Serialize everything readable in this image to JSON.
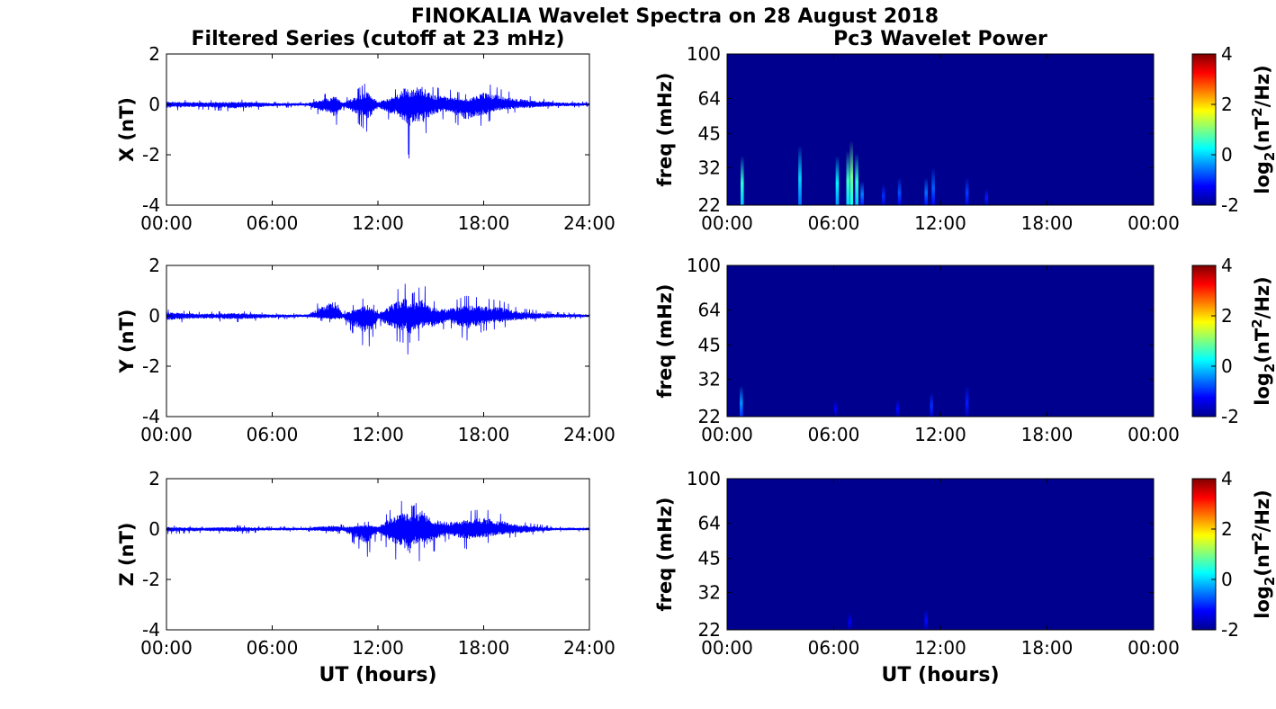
{
  "figure_title": "FINOKALIA Wavelet Spectra on 28 August 2018",
  "left_column_title": "Filtered Series (cutoff at 23 mHz)",
  "right_column_title": "Pc3 Wavelet Power",
  "time_xlabel": "UT (hours)",
  "freq_ylabel": "freq (mHz)",
  "colorbar_label": "log2(nT2/Hz)",
  "colors": {
    "trace": "#0000ff",
    "background": "#00008f",
    "axes": "#000000",
    "colormap": [
      "#00008f",
      "#0000ff",
      "#00ffff",
      "#ffff00",
      "#ff0000",
      "#800000"
    ]
  },
  "chart_data": [
    {
      "type": "line",
      "component": "X",
      "ylabel": "X (nT)",
      "xlim": [
        0,
        24
      ],
      "ylim": [
        -4,
        2
      ],
      "xticks": [
        "00:00",
        "06:00",
        "12:00",
        "18:00",
        "24:00"
      ],
      "yticks": [
        "2",
        "0",
        "-2",
        "-4"
      ],
      "grid": false,
      "series": [
        {
          "x_hours": [
            0,
            2,
            4,
            6,
            8,
            9.6,
            10,
            11.4,
            12,
            13,
            13.6,
            13.8,
            14,
            14.6,
            15,
            16,
            17,
            18,
            19,
            20,
            22,
            24
          ],
          "y_upper": [
            0.2,
            0.15,
            0.2,
            0.1,
            0.1,
            0.6,
            0.15,
            0.9,
            0.2,
            0.6,
            1.4,
            0.8,
            1.2,
            1.3,
            0.7,
            0.6,
            0.4,
            0.9,
            0.6,
            0.4,
            0.15,
            0.1
          ],
          "y_lower": [
            -0.25,
            -0.2,
            -0.3,
            -0.15,
            -0.1,
            -0.9,
            -0.2,
            -1.1,
            -0.3,
            -0.8,
            -1.4,
            -2.3,
            -1.2,
            -1.3,
            -0.8,
            -0.5,
            -1.1,
            -0.8,
            -0.4,
            -0.3,
            -0.15,
            -0.1
          ]
        }
      ]
    },
    {
      "type": "line",
      "component": "Y",
      "ylabel": "Y (nT)",
      "xlim": [
        0,
        24
      ],
      "ylim": [
        -4,
        2
      ],
      "xticks": [
        "00:00",
        "06:00",
        "12:00",
        "18:00",
        "24:00"
      ],
      "yticks": [
        "2",
        "0",
        "-2",
        "-4"
      ],
      "grid": false,
      "series": [
        {
          "x_hours": [
            0,
            2,
            4,
            6,
            8,
            9.6,
            10,
            11.4,
            12,
            13,
            13.6,
            13.8,
            14,
            14.6,
            15,
            16,
            17,
            18,
            19,
            20,
            22,
            24
          ],
          "y_upper": [
            0.25,
            0.15,
            0.2,
            0.1,
            0.1,
            1.2,
            0.15,
            0.8,
            0.2,
            1.0,
            1.3,
            0.9,
            0.9,
            1.3,
            0.6,
            0.5,
            0.8,
            0.7,
            0.6,
            0.3,
            0.15,
            0.1
          ],
          "y_lower": [
            -0.3,
            -0.2,
            -0.25,
            -0.15,
            -0.1,
            -0.3,
            -0.2,
            -1.4,
            -0.3,
            -1.0,
            -1.1,
            -2.0,
            -1.1,
            -0.9,
            -0.9,
            -0.4,
            -1.0,
            -0.6,
            -0.5,
            -0.3,
            -0.15,
            -0.1
          ]
        }
      ]
    },
    {
      "type": "line",
      "component": "Z",
      "ylabel": "Z (nT)",
      "xlim": [
        0,
        24
      ],
      "ylim": [
        -4,
        2
      ],
      "xticks": [
        "00:00",
        "06:00",
        "12:00",
        "18:00",
        "24:00"
      ],
      "yticks": [
        "2",
        "0",
        "-2",
        "-4"
      ],
      "grid": false,
      "series": [
        {
          "x_hours": [
            0,
            2,
            4,
            6,
            8,
            9.6,
            10,
            11.4,
            12,
            13,
            13.6,
            13.8,
            14,
            14.6,
            15,
            16,
            17,
            18,
            19,
            20,
            22,
            24
          ],
          "y_upper": [
            0.15,
            0.1,
            0.15,
            0.1,
            0.1,
            0.3,
            0.15,
            0.3,
            0.2,
            1.0,
            1.2,
            1.0,
            0.9,
            1.4,
            0.7,
            0.5,
            0.7,
            0.8,
            0.6,
            0.3,
            0.1,
            0.1
          ],
          "y_lower": [
            -0.2,
            -0.15,
            -0.2,
            -0.1,
            -0.1,
            -0.2,
            -0.15,
            -1.1,
            -0.3,
            -1.2,
            -1.5,
            -2.2,
            -1.1,
            -1.4,
            -1.0,
            -0.4,
            -0.8,
            -0.6,
            -0.4,
            -0.3,
            -0.1,
            -0.1
          ]
        }
      ]
    },
    {
      "type": "heatmap",
      "component": "X",
      "xlim": [
        0,
        24
      ],
      "ylim": [
        22,
        100
      ],
      "yscale": "log",
      "xticks": [
        "00:00",
        "06:00",
        "12:00",
        "18:00",
        "00:00"
      ],
      "yticks": [
        "100",
        "64",
        "45",
        "32",
        "22"
      ],
      "clim": [
        -2,
        4
      ],
      "cticks": [
        "4",
        "2",
        "0",
        "-2"
      ],
      "bursts": [
        {
          "t_hours": 0.85,
          "f_top_mHz": 36,
          "peak": 0.5
        },
        {
          "t_hours": 4.1,
          "f_top_mHz": 40,
          "peak": 0.0
        },
        {
          "t_hours": 6.2,
          "f_top_mHz": 36,
          "peak": 0.2
        },
        {
          "t_hours": 6.8,
          "f_top_mHz": 38,
          "peak": 0.6
        },
        {
          "t_hours": 7.0,
          "f_top_mHz": 42,
          "peak": 0.9
        },
        {
          "t_hours": 7.3,
          "f_top_mHz": 37,
          "peak": 0.5
        },
        {
          "t_hours": 7.6,
          "f_top_mHz": 28,
          "peak": -0.5
        },
        {
          "t_hours": 8.8,
          "f_top_mHz": 27,
          "peak": -1.0
        },
        {
          "t_hours": 9.7,
          "f_top_mHz": 29,
          "peak": -0.8
        },
        {
          "t_hours": 11.2,
          "f_top_mHz": 29,
          "peak": -0.6
        },
        {
          "t_hours": 11.6,
          "f_top_mHz": 32,
          "peak": -0.7
        },
        {
          "t_hours": 13.5,
          "f_top_mHz": 29,
          "peak": -0.9
        },
        {
          "t_hours": 14.6,
          "f_top_mHz": 26,
          "peak": -1.1
        }
      ]
    },
    {
      "type": "heatmap",
      "component": "Y",
      "xlim": [
        0,
        24
      ],
      "ylim": [
        22,
        100
      ],
      "yscale": "log",
      "xticks": [
        "00:00",
        "06:00",
        "12:00",
        "18:00",
        "00:00"
      ],
      "yticks": [
        "100",
        "64",
        "45",
        "32",
        "22"
      ],
      "clim": [
        -2,
        4
      ],
      "cticks": [
        "4",
        "2",
        "0",
        "-2"
      ],
      "bursts": [
        {
          "t_hours": 0.8,
          "f_top_mHz": 30,
          "peak": -0.4
        },
        {
          "t_hours": 6.1,
          "f_top_mHz": 26,
          "peak": -1.3
        },
        {
          "t_hours": 9.6,
          "f_top_mHz": 26,
          "peak": -1.2
        },
        {
          "t_hours": 11.5,
          "f_top_mHz": 28,
          "peak": -1.0
        },
        {
          "t_hours": 13.5,
          "f_top_mHz": 30,
          "peak": -1.1
        }
      ]
    },
    {
      "type": "heatmap",
      "component": "Z",
      "xlim": [
        0,
        24
      ],
      "ylim": [
        22,
        100
      ],
      "yscale": "log",
      "xticks": [
        "00:00",
        "06:00",
        "12:00",
        "18:00",
        "00:00"
      ],
      "yticks": [
        "100",
        "64",
        "45",
        "32",
        "22"
      ],
      "clim": [
        -2,
        4
      ],
      "cticks": [
        "4",
        "2",
        "0",
        "-2"
      ],
      "bursts": [
        {
          "t_hours": 6.9,
          "f_top_mHz": 26,
          "peak": -1.3
        },
        {
          "t_hours": 11.2,
          "f_top_mHz": 27,
          "peak": -1.2
        }
      ]
    }
  ]
}
